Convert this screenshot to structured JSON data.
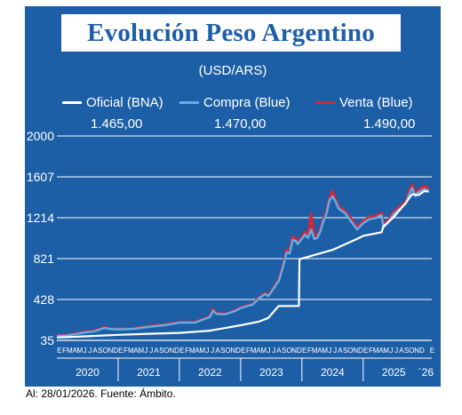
{
  "title": "Evolución Peso Argentino",
  "unit": "(USD/ARS)",
  "footer": "Al: 28/01/2026. Fuente: Ámbito.",
  "colors": {
    "panel": "#1d5fa6",
    "oficial": "#ffffff",
    "compra": "#5fb0e8",
    "venta": "#d6263a",
    "grid": "#ffffff"
  },
  "chart_data": {
    "type": "line",
    "ylim": [
      35,
      2000
    ],
    "yticks": [
      35,
      428,
      821,
      1214,
      1607,
      2000
    ],
    "ytick_labels": [
      "35",
      "428",
      "821",
      "1214",
      "1607",
      "2000"
    ],
    "xlim": [
      2020.0,
      2026.12
    ],
    "month_letters": [
      "E",
      "F",
      "M",
      "A",
      "M",
      "J",
      "J",
      "A",
      "S",
      "O",
      "N",
      "D"
    ],
    "years": [
      "2020",
      "2021",
      "2022",
      "2023",
      "2024",
      "2025"
    ],
    "last_tick_label": "´26",
    "series": [
      {
        "name": "Oficial (BNA)",
        "last_value": "1.465,00",
        "points": [
          [
            2020.0,
            62
          ],
          [
            2020.5,
            74
          ],
          [
            2021.0,
            88
          ],
          [
            2021.5,
            98
          ],
          [
            2022.0,
            107
          ],
          [
            2022.5,
            128
          ],
          [
            2023.0,
            180
          ],
          [
            2023.3,
            215
          ],
          [
            2023.45,
            250
          ],
          [
            2023.62,
            365
          ],
          [
            2023.95,
            366
          ],
          [
            2023.96,
            815
          ],
          [
            2024.0,
            822
          ],
          [
            2024.5,
            905
          ],
          [
            2024.9,
            1010
          ],
          [
            2025.0,
            1040
          ],
          [
            2025.3,
            1075
          ],
          [
            2025.33,
            1130
          ],
          [
            2025.5,
            1220
          ],
          [
            2025.7,
            1360
          ],
          [
            2025.8,
            1440
          ],
          [
            2025.9,
            1430
          ],
          [
            2026.0,
            1470
          ],
          [
            2026.07,
            1465
          ]
        ]
      },
      {
        "name": "Compra (Blue)",
        "last_value": "1.470,00",
        "points": [
          [
            2020.0,
            78
          ],
          [
            2020.15,
            80
          ],
          [
            2020.3,
            95
          ],
          [
            2020.5,
            115
          ],
          [
            2020.6,
            120
          ],
          [
            2020.78,
            155
          ],
          [
            2020.85,
            145
          ],
          [
            2021.0,
            140
          ],
          [
            2021.25,
            145
          ],
          [
            2021.5,
            165
          ],
          [
            2021.75,
            180
          ],
          [
            2021.9,
            195
          ],
          [
            2022.0,
            205
          ],
          [
            2022.25,
            205
          ],
          [
            2022.5,
            260
          ],
          [
            2022.55,
            320
          ],
          [
            2022.6,
            290
          ],
          [
            2022.75,
            285
          ],
          [
            2022.9,
            315
          ],
          [
            2023.0,
            345
          ],
          [
            2023.2,
            380
          ],
          [
            2023.3,
            440
          ],
          [
            2023.4,
            480
          ],
          [
            2023.45,
            460
          ],
          [
            2023.5,
            500
          ],
          [
            2023.6,
            590
          ],
          [
            2023.62,
            600
          ],
          [
            2023.68,
            720
          ],
          [
            2023.75,
            880
          ],
          [
            2023.8,
            870
          ],
          [
            2023.85,
            1000
          ],
          [
            2023.9,
            990
          ],
          [
            2023.93,
            960
          ],
          [
            2024.0,
            1010
          ],
          [
            2024.05,
            1050
          ],
          [
            2024.1,
            1020
          ],
          [
            2024.15,
            1100
          ],
          [
            2024.2,
            1010
          ],
          [
            2024.25,
            1020
          ],
          [
            2024.3,
            1080
          ],
          [
            2024.35,
            1180
          ],
          [
            2024.4,
            1250
          ],
          [
            2024.45,
            1380
          ],
          [
            2024.5,
            1420
          ],
          [
            2024.55,
            1370
          ],
          [
            2024.6,
            1300
          ],
          [
            2024.7,
            1260
          ],
          [
            2024.8,
            1180
          ],
          [
            2024.9,
            1100
          ],
          [
            2025.0,
            1160
          ],
          [
            2025.1,
            1200
          ],
          [
            2025.2,
            1210
          ],
          [
            2025.3,
            1240
          ],
          [
            2025.33,
            1120
          ],
          [
            2025.4,
            1160
          ],
          [
            2025.5,
            1250
          ],
          [
            2025.6,
            1300
          ],
          [
            2025.7,
            1350
          ],
          [
            2025.75,
            1440
          ],
          [
            2025.8,
            1500
          ],
          [
            2025.85,
            1420
          ],
          [
            2025.9,
            1460
          ],
          [
            2026.0,
            1490
          ],
          [
            2026.07,
            1470
          ]
        ]
      },
      {
        "name": "Venta (Blue)",
        "last_value": "1.490,00",
        "points": [
          [
            2020.0,
            82
          ],
          [
            2020.15,
            84
          ],
          [
            2020.3,
            100
          ],
          [
            2020.5,
            120
          ],
          [
            2020.6,
            125
          ],
          [
            2020.78,
            162
          ],
          [
            2020.85,
            150
          ],
          [
            2021.0,
            145
          ],
          [
            2021.25,
            150
          ],
          [
            2021.5,
            170
          ],
          [
            2021.75,
            185
          ],
          [
            2021.9,
            200
          ],
          [
            2022.0,
            210
          ],
          [
            2022.25,
            210
          ],
          [
            2022.5,
            265
          ],
          [
            2022.55,
            335
          ],
          [
            2022.6,
            295
          ],
          [
            2022.75,
            290
          ],
          [
            2022.9,
            320
          ],
          [
            2023.0,
            350
          ],
          [
            2023.2,
            385
          ],
          [
            2023.3,
            445
          ],
          [
            2023.4,
            490
          ],
          [
            2023.45,
            465
          ],
          [
            2023.5,
            505
          ],
          [
            2023.6,
            600
          ],
          [
            2023.62,
            610
          ],
          [
            2023.68,
            735
          ],
          [
            2023.75,
            905
          ],
          [
            2023.8,
            890
          ],
          [
            2023.85,
            1030
          ],
          [
            2023.9,
            1010
          ],
          [
            2023.93,
            980
          ],
          [
            2024.0,
            1030
          ],
          [
            2024.05,
            1075
          ],
          [
            2024.1,
            1040
          ],
          [
            2024.15,
            1250
          ],
          [
            2024.2,
            1030
          ],
          [
            2024.25,
            1040
          ],
          [
            2024.3,
            1100
          ],
          [
            2024.35,
            1200
          ],
          [
            2024.4,
            1270
          ],
          [
            2024.45,
            1400
          ],
          [
            2024.5,
            1470
          ],
          [
            2024.55,
            1390
          ],
          [
            2024.6,
            1320
          ],
          [
            2024.7,
            1280
          ],
          [
            2024.8,
            1205
          ],
          [
            2024.9,
            1120
          ],
          [
            2025.0,
            1180
          ],
          [
            2025.1,
            1220
          ],
          [
            2025.2,
            1230
          ],
          [
            2025.3,
            1260
          ],
          [
            2025.33,
            1140
          ],
          [
            2025.4,
            1180
          ],
          [
            2025.5,
            1270
          ],
          [
            2025.6,
            1320
          ],
          [
            2025.7,
            1370
          ],
          [
            2025.75,
            1470
          ],
          [
            2025.8,
            1530
          ],
          [
            2025.85,
            1445
          ],
          [
            2025.9,
            1480
          ],
          [
            2026.0,
            1520
          ],
          [
            2026.07,
            1490
          ]
        ]
      }
    ]
  }
}
